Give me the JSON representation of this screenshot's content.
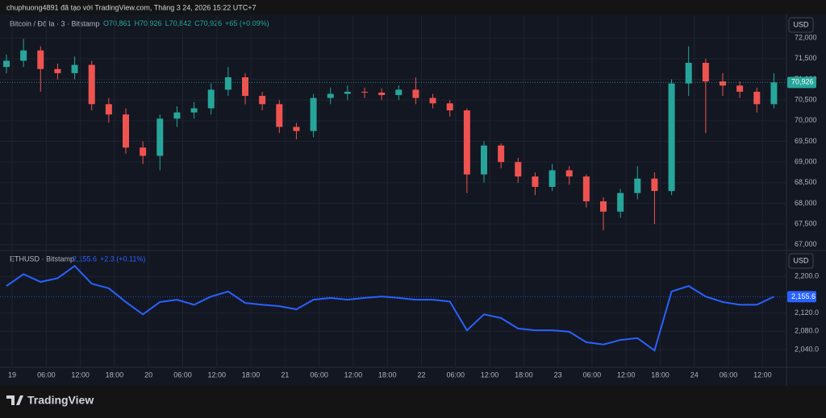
{
  "header": "chuphuong4891 đã tạo với TradingView.com, Tháng 3 24, 2026 15:22 UTC+7",
  "footer": "TradingView",
  "chart_data": [
    {
      "type": "candlestick",
      "title": "Bitcoin / Đô la · 3 · Bitstamp",
      "ohlc_legend": [
        "O70,861",
        "H70,926",
        "L70,842",
        "C70,926",
        "+65 (+0.09%)"
      ],
      "currency": "USD",
      "up_color": "#26a69a",
      "down_color": "#ef5350",
      "x": [
        -1,
        2,
        5,
        8,
        11,
        14,
        17,
        20,
        23,
        26,
        29,
        32,
        35,
        38,
        41,
        44,
        47,
        50,
        53,
        56,
        59,
        62,
        65,
        68,
        71,
        74,
        77,
        80,
        83,
        86,
        89,
        92,
        95,
        98,
        101,
        104,
        107,
        110,
        113,
        116,
        119,
        122,
        125,
        128,
        131,
        134
      ],
      "open": [
        71300,
        71450,
        71700,
        71250,
        71150,
        71350,
        70400,
        70150,
        69350,
        69150,
        70050,
        70200,
        70300,
        70750,
        71050,
        70600,
        70400,
        69850,
        69750,
        70550,
        70650,
        70700,
        70680,
        70620,
        70750,
        70550,
        70420,
        70250,
        68700,
        69400,
        69000,
        68650,
        68400,
        68800,
        68650,
        68050,
        67800,
        68250,
        68600,
        68300,
        70900,
        71400,
        70950,
        70850,
        70700,
        70400
      ],
      "high": [
        71600,
        71980,
        71800,
        71380,
        71550,
        71450,
        70550,
        70300,
        69500,
        70150,
        70350,
        70450,
        70900,
        71300,
        71150,
        70700,
        70500,
        69950,
        70650,
        70800,
        70850,
        70800,
        70780,
        70850,
        71050,
        70650,
        70500,
        70300,
        69500,
        69450,
        69100,
        68750,
        68950,
        68900,
        68700,
        68150,
        68350,
        68900,
        68750,
        71000,
        71800,
        71500,
        71150,
        70950,
        70800,
        71150
      ],
      "low": [
        71150,
        71300,
        70700,
        71000,
        71000,
        70250,
        69950,
        69200,
        68950,
        68800,
        69850,
        70050,
        70150,
        70600,
        70400,
        70250,
        69700,
        69550,
        69600,
        70400,
        70500,
        70550,
        70500,
        70500,
        70400,
        70300,
        70100,
        68250,
        68500,
        68850,
        68500,
        68200,
        68300,
        68450,
        67900,
        67350,
        67650,
        68100,
        67500,
        68200,
        70600,
        69700,
        70600,
        70550,
        70200,
        70300
      ],
      "close": [
        71450,
        71700,
        71250,
        71150,
        71350,
        70400,
        70150,
        69350,
        69150,
        70050,
        70200,
        70300,
        70750,
        71050,
        70600,
        70400,
        69850,
        69750,
        70550,
        70650,
        70700,
        70680,
        70620,
        70750,
        70550,
        70420,
        70250,
        68700,
        69400,
        69000,
        68650,
        68400,
        68800,
        68650,
        68050,
        67800,
        68250,
        68600,
        68300,
        70900,
        71400,
        70950,
        70850,
        70700,
        70400,
        70926
      ],
      "last_price": {
        "value": 70926,
        "label": "70,926"
      },
      "xlim": [
        -1,
        135.5
      ],
      "ylim": [
        66880,
        72530
      ],
      "yticks": [
        {
          "value": 67000,
          "label": "67,000"
        },
        {
          "value": 67500,
          "label": "67,500"
        },
        {
          "value": 68000,
          "label": "68,000"
        },
        {
          "value": 68500,
          "label": "68,500"
        },
        {
          "value": 69000,
          "label": "69,000"
        },
        {
          "value": 69500,
          "label": "69,500"
        },
        {
          "value": 70000,
          "label": "70,000"
        },
        {
          "value": 70500,
          "label": "70,500"
        },
        {
          "value": 71000,
          "label": "71,000"
        },
        {
          "value": 71500,
          "label": "71,500"
        },
        {
          "value": 72000,
          "label": "72,000"
        }
      ],
      "grid": true
    },
    {
      "type": "line",
      "title": "ETHUSD · Bitstamp",
      "legend_value": "2,155.6",
      "legend_change": "+2.3 (+0.11%)",
      "currency": "USD",
      "color": "#2962ff",
      "x": [
        -1,
        2,
        5,
        8,
        11,
        14,
        17,
        20,
        23,
        26,
        29,
        32,
        35,
        38,
        41,
        44,
        47,
        50,
        53,
        56,
        59,
        62,
        65,
        68,
        71,
        74,
        77,
        80,
        83,
        86,
        89,
        92,
        95,
        98,
        101,
        104,
        107,
        110,
        113,
        116,
        119,
        122,
        125,
        128,
        131,
        134
      ],
      "values": [
        2179,
        2205,
        2188,
        2196,
        2223,
        2184,
        2174,
        2144,
        2117,
        2144,
        2149,
        2138,
        2156,
        2167,
        2142,
        2138,
        2135,
        2128,
        2149,
        2153,
        2149,
        2153,
        2156,
        2153,
        2149,
        2149,
        2145,
        2082,
        2117,
        2109,
        2086,
        2082,
        2082,
        2079,
        2056,
        2051,
        2061,
        2065,
        2038,
        2167,
        2179,
        2156,
        2144,
        2138,
        2138,
        2155.6
      ],
      "last_price": {
        "value": 2155.6,
        "label": "2,155.6"
      },
      "xlim": [
        -1,
        135.5
      ],
      "ylim": [
        2003,
        2255
      ],
      "yticks": [
        {
          "value": 2040,
          "label": "2,040.0"
        },
        {
          "value": 2080,
          "label": "2,080.0"
        },
        {
          "value": 2120,
          "label": "2,120.0"
        },
        {
          "value": 2200,
          "label": "2,200.0"
        }
      ],
      "xticks": [
        {
          "value": 0,
          "label": "19"
        },
        {
          "value": 6,
          "label": "06:00"
        },
        {
          "value": 12,
          "label": "12:00"
        },
        {
          "value": 18,
          "label": "18:00"
        },
        {
          "value": 24,
          "label": "20"
        },
        {
          "value": 30,
          "label": "06:00"
        },
        {
          "value": 36,
          "label": "12:00"
        },
        {
          "value": 42,
          "label": "18:00"
        },
        {
          "value": 48,
          "label": "21"
        },
        {
          "value": 54,
          "label": "06:00"
        },
        {
          "value": 60,
          "label": "12:00"
        },
        {
          "value": 66,
          "label": "18:00"
        },
        {
          "value": 72,
          "label": "22"
        },
        {
          "value": 78,
          "label": "06:00"
        },
        {
          "value": 84,
          "label": "12:00"
        },
        {
          "value": 90,
          "label": "18:00"
        },
        {
          "value": 96,
          "label": "23"
        },
        {
          "value": 102,
          "label": "06:00"
        },
        {
          "value": 108,
          "label": "12:00"
        },
        {
          "value": 114,
          "label": "18:00"
        },
        {
          "value": 120,
          "label": "24"
        },
        {
          "value": 126,
          "label": "06:00"
        },
        {
          "value": 132,
          "label": "12:00"
        }
      ],
      "grid": true
    }
  ]
}
